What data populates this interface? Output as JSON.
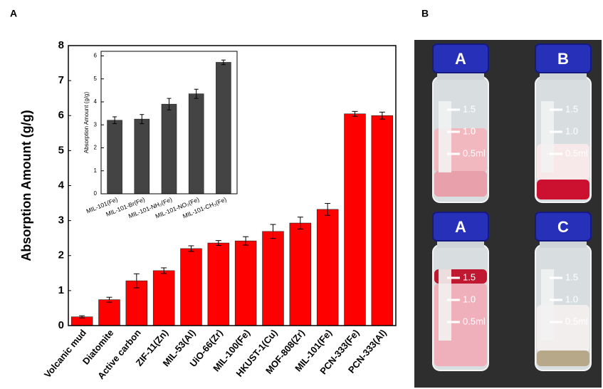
{
  "panel_labels": [
    "A",
    "B"
  ],
  "chart_data": [
    {
      "type": "bar",
      "ylabel": "Absorption Amount (g/g)",
      "categories": [
        "Volcanic mud",
        "Diatomite",
        "Active carbon",
        "ZIF-11(Zn)",
        "MIL-53(Al)",
        "UiO-66(Zr)",
        "MIL-100(Fe)",
        "HKUST-1(Cu)",
        "MOF-808(Zr)",
        "MIL-101(Fe)",
        "PCN-333(Fe)",
        "PCN-333(Al)"
      ],
      "values": [
        0.25,
        0.74,
        1.28,
        1.57,
        2.2,
        2.36,
        2.42,
        2.69,
        2.93,
        3.32,
        6.05,
        6.0
      ],
      "errors": [
        0.03,
        0.07,
        0.2,
        0.08,
        0.08,
        0.07,
        0.12,
        0.2,
        0.17,
        0.17,
        0.07,
        0.1
      ],
      "color": "#ff0000",
      "ylim": [
        0,
        8
      ],
      "yticks": [
        0,
        1,
        2,
        3,
        4,
        5,
        6,
        7,
        8
      ]
    },
    {
      "type": "bar",
      "ylabel": "Absorption Amount (g/g)",
      "categories": [
        "MIL-101(Fe)",
        "MIL-101-Br(Fe)",
        "MIL-101-NH₂(Fe)",
        "MIL-101-NO₂(Fe)",
        "MIL-101-CH₃(Fe)"
      ],
      "values": [
        3.2,
        3.25,
        3.9,
        4.35,
        5.72
      ],
      "errors": [
        0.15,
        0.2,
        0.25,
        0.2,
        0.1
      ],
      "color": "#444444",
      "ylim": [
        0,
        6.2
      ],
      "yticks": [
        0,
        1,
        2,
        3,
        4,
        5,
        6
      ]
    }
  ],
  "photo": {
    "vials": [
      {
        "label": "A",
        "marks": [
          "1.5",
          "1.0",
          "0.5ml"
        ]
      },
      {
        "label": "B",
        "marks": [
          "1.5",
          "1.0",
          "0.5ml"
        ]
      },
      {
        "label": "A",
        "marks": [
          "1.5",
          "1.0",
          "0.5ml"
        ]
      },
      {
        "label": "C",
        "marks": [
          "1.5",
          "1.0",
          "0.5ml"
        ]
      }
    ]
  }
}
